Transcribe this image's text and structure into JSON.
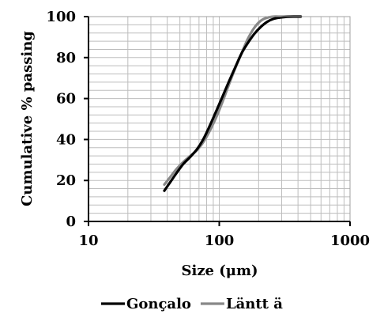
{
  "chart_data": {
    "type": "line",
    "xscale": "log",
    "xlim": [
      10,
      1000
    ],
    "ylim": [
      0,
      100
    ],
    "xticks": [
      10,
      100,
      1000
    ],
    "yticks": [
      0,
      20,
      40,
      60,
      80,
      100
    ],
    "xtick_labels": [
      "10",
      "100",
      "1000"
    ],
    "ytick_labels": [
      "0",
      "20",
      "40",
      "60",
      "80",
      "100"
    ],
    "xlabel": "Size (μm)",
    "ylabel": "Cumulative % passing",
    "grid": true,
    "legend_position": "bottom",
    "series": [
      {
        "name": "Gonçalo",
        "color": "#000000",
        "x": [
          38,
          42,
          47,
          53,
          60,
          68,
          76,
          85,
          95,
          106,
          118,
          132,
          148,
          165,
          185,
          208,
          233,
          262,
          295,
          330,
          370,
          420
        ],
        "y": [
          15,
          19,
          23.5,
          28,
          31.5,
          35.5,
          40.5,
          47,
          54,
          61,
          68,
          75,
          82,
          87,
          91.5,
          95,
          97.5,
          99,
          99.6,
          99.9,
          100,
          100
        ]
      },
      {
        "name": "Läntt ä",
        "color": "#888888",
        "x": [
          38,
          42,
          47,
          53,
          60,
          68,
          76,
          85,
          95,
          106,
          118,
          132,
          148,
          165,
          185,
          208,
          233,
          262,
          295,
          330,
          370,
          420
        ],
        "y": [
          18,
          21.5,
          25.5,
          29,
          32,
          35,
          39,
          44.5,
          51,
          58.5,
          66.5,
          74.5,
          82,
          89,
          94.5,
          98,
          99.5,
          100,
          100,
          100,
          100,
          100
        ]
      }
    ]
  }
}
